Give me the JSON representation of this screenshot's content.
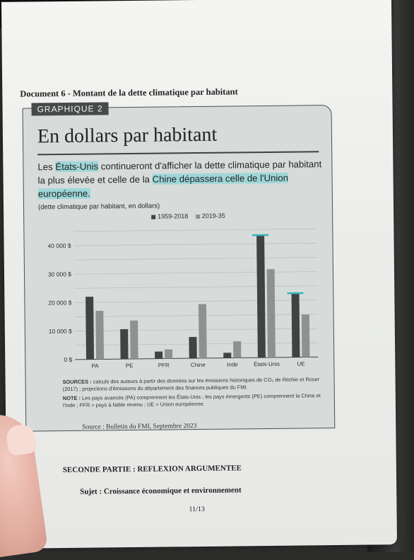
{
  "document": {
    "title": "Document 6 - Montant de la dette climatique par habitant",
    "source": "Source : Bulletin du FMI, Septembre 2023",
    "part_title": "SECONDE PARTIE : REFLEXION ARGUMENTEE",
    "subject": "Sujet : Croissance économique et environnement",
    "page": "11/13"
  },
  "figure": {
    "tag": "GRAPHIQUE 2",
    "title": "En dollars par habitant",
    "lead_pre": "Les ",
    "lead_hl1": "États-Unis",
    "lead_mid": " continueront d'afficher la dette climatique par habitant la plus élevée et celle de la ",
    "lead_hl2": "Chine dépassera celle de l'Union européenne.",
    "unit_note": "(dette climatique par habitant, en dollars)",
    "sources_label": "SOURCES :",
    "sources_text": "calculs des auteurs à partir des données sur les émissions historiques de CO₂ de Ritchie et Roser (2017) ; projections d'émissions du département des finances publiques du FMI.",
    "note_label": "NOTE :",
    "note_text": "Les pays avancés (PA) comprennent les États-Unis ; les pays émergents (PE) comprennent la Chine et l'Inde ; PFR = pays à faible revenu ; UE = Union européenne."
  },
  "chart_data": {
    "type": "bar",
    "categories": [
      "PA",
      "PE",
      "PFR",
      "Chine",
      "Inde",
      "États-Unis",
      "UE"
    ],
    "series": [
      {
        "name": "1959-2018",
        "values": [
          22000,
          10500,
          2500,
          7500,
          1800,
          43000,
          22500
        ]
      },
      {
        "name": "2019-35",
        "values": [
          17000,
          13500,
          3200,
          19000,
          5800,
          31000,
          15000
        ]
      }
    ],
    "highlighted": [
      "États-Unis",
      "UE"
    ],
    "ylim": [
      0,
      45000
    ],
    "yticks": [
      0,
      10000,
      20000,
      30000,
      40000
    ],
    "ytick_labels": [
      "0 $",
      "10 000 $",
      "20 000 $",
      "30 000 $",
      "40 000 $"
    ],
    "grid": true,
    "legend_position": "top-center",
    "colors": {
      "series1": "#3e4343",
      "series2": "#8d9291",
      "highlight": "#35b3b8"
    }
  }
}
